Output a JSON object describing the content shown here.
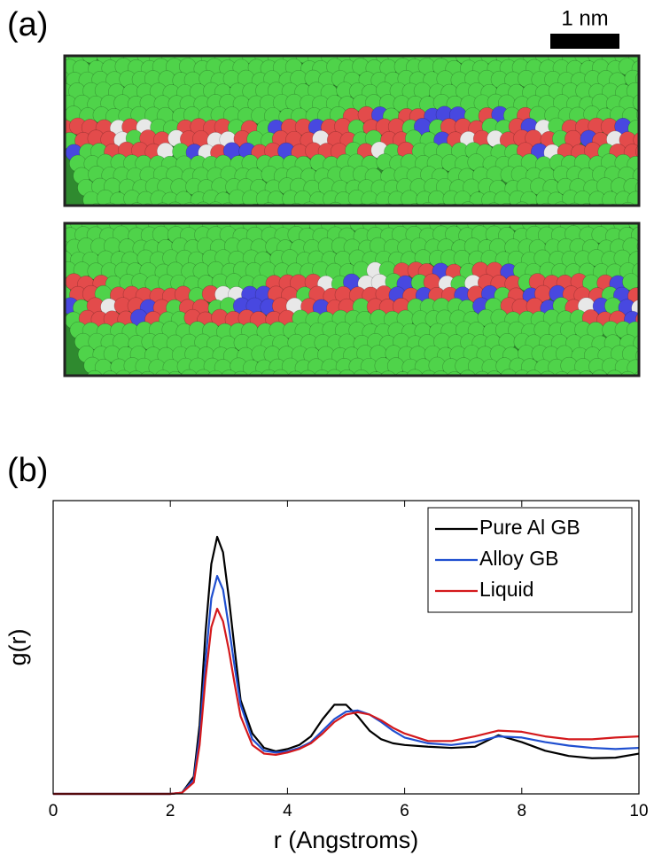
{
  "figure": {
    "panel_a_label": "(a)",
    "scale_bar_label": "1 nm"
  },
  "chart_data": {
    "type": "line",
    "panel_label": "(b)",
    "xlabel": "r (Angstroms)",
    "ylabel": "g(r)",
    "x": [
      0,
      1,
      2,
      2.2,
      2.4,
      2.5,
      2.6,
      2.7,
      2.8,
      2.9,
      3.0,
      3.1,
      3.2,
      3.4,
      3.6,
      3.8,
      4.0,
      4.2,
      4.4,
      4.6,
      4.8,
      5.0,
      5.2,
      5.4,
      5.6,
      5.8,
      6.0,
      6.4,
      6.8,
      7.2,
      7.6,
      8.0,
      8.4,
      8.8,
      9.2,
      9.6,
      10
    ],
    "series": [
      {
        "name": "Pure Al GB",
        "color": "#000000",
        "values": [
          0,
          0,
          0,
          0.02,
          0.3,
          1.2,
          2.8,
          4.0,
          4.47,
          4.2,
          3.4,
          2.5,
          1.63,
          1.05,
          0.8,
          0.74,
          0.78,
          0.85,
          1.0,
          1.3,
          1.55,
          1.55,
          1.35,
          1.1,
          0.95,
          0.88,
          0.85,
          0.82,
          0.8,
          0.82,
          1.02,
          0.9,
          0.75,
          0.66,
          0.62,
          0.63,
          0.7
        ]
      },
      {
        "name": "Alloy GB",
        "color": "#1f4fd0",
        "values": [
          0,
          0,
          0,
          0.02,
          0.25,
          1.0,
          2.3,
          3.4,
          3.79,
          3.55,
          2.9,
          2.2,
          1.55,
          0.95,
          0.75,
          0.72,
          0.74,
          0.8,
          0.9,
          1.1,
          1.3,
          1.43,
          1.45,
          1.38,
          1.25,
          1.1,
          0.98,
          0.88,
          0.85,
          0.9,
          1.0,
          0.98,
          0.9,
          0.84,
          0.8,
          0.78,
          0.8
        ]
      },
      {
        "name": "Liquid",
        "color": "#d4191c",
        "values": [
          0,
          0,
          0,
          0.02,
          0.2,
          0.85,
          2.0,
          2.9,
          3.22,
          3.0,
          2.5,
          1.9,
          1.35,
          0.85,
          0.7,
          0.68,
          0.72,
          0.78,
          0.88,
          1.05,
          1.25,
          1.38,
          1.42,
          1.38,
          1.28,
          1.15,
          1.05,
          0.92,
          0.92,
          1.0,
          1.1,
          1.08,
          1.0,
          0.95,
          0.95,
          0.98,
          1.0
        ]
      }
    ],
    "xlim": [
      0,
      10
    ],
    "xticks": [
      0,
      2,
      4,
      6,
      8,
      10
    ],
    "ylim": [
      0,
      5.1
    ],
    "legend": "upper right"
  }
}
